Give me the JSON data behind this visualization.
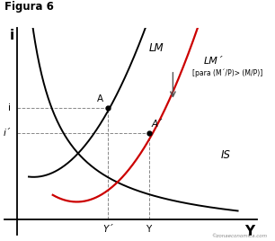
{
  "title": "Figura 6",
  "xlabel": "Y",
  "ylabel": "i",
  "bg_color": "#ffffff",
  "IS_color": "#000000",
  "LM_color": "#000000",
  "LM_prime_color": "#cc0000",
  "dashed_color": "#888888",
  "point_A_label": "A",
  "point_A_prime_label": "A´",
  "LM_label": "LM",
  "LM_prime_label": "LM´",
  "LM_prime_sublabel": "[para (M´/P)> (M/P)]",
  "IS_label": "IS",
  "i_label": "i",
  "i_prime_label": "i´",
  "Y_prime_label": "Y´",
  "Y_label": "Y",
  "xmin": 0.0,
  "xmax": 10.0,
  "ymin": 0.0,
  "ymax": 10.0,
  "A_x": 3.8,
  "A_y": 5.8,
  "A_prime_x": 5.5,
  "A_prime_y": 4.5
}
